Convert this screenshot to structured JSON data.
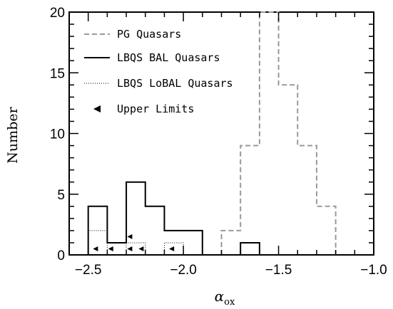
{
  "chart_data": {
    "type": "histogram",
    "xlabel": "α",
    "xlabel_subscript": "ox",
    "ylabel": "Number",
    "xlim": [
      -2.6,
      -1.0
    ],
    "ylim": [
      0,
      20
    ],
    "x_ticks": [
      -2.5,
      -2.0,
      -1.5,
      -1.0
    ],
    "x_tick_labels": [
      "−2.5",
      "−2.0",
      "−1.5",
      "−1.0"
    ],
    "y_ticks": [
      0,
      5,
      10,
      15,
      20
    ],
    "y_tick_labels": [
      "0",
      "5",
      "10",
      "15",
      "20"
    ],
    "series": [
      {
        "name": "PG Quasars",
        "style": "dashed",
        "color": "#999999",
        "bins": [
          {
            "x0": -1.8,
            "x1": -1.7,
            "count": 2
          },
          {
            "x0": -1.7,
            "x1": -1.6,
            "count": 9
          },
          {
            "x0": -1.6,
            "x1": -1.5,
            "count": 20
          },
          {
            "x0": -1.5,
            "x1": -1.4,
            "count": 14
          },
          {
            "x0": -1.4,
            "x1": -1.3,
            "count": 9
          },
          {
            "x0": -1.3,
            "x1": -1.2,
            "count": 4
          }
        ]
      },
      {
        "name": "LBQS BAL Quasars",
        "style": "solid",
        "color": "#000000",
        "bins": [
          {
            "x0": -2.5,
            "x1": -2.4,
            "count": 4
          },
          {
            "x0": -2.4,
            "x1": -2.3,
            "count": 1
          },
          {
            "x0": -2.3,
            "x1": -2.2,
            "count": 6
          },
          {
            "x0": -2.2,
            "x1": -2.1,
            "count": 4
          },
          {
            "x0": -2.1,
            "x1": -1.9,
            "count": 2
          },
          {
            "x0": -1.9,
            "x1": -1.7,
            "count": 0
          },
          {
            "x0": -1.7,
            "x1": -1.6,
            "count": 1
          }
        ]
      },
      {
        "name": "LBQS LoBAL Quasars",
        "style": "dotted",
        "color": "#000000",
        "bins": [
          {
            "x0": -2.5,
            "x1": -2.4,
            "count": 2
          },
          {
            "x0": -2.4,
            "x1": -2.3,
            "count": 0
          },
          {
            "x0": -2.3,
            "x1": -2.2,
            "count": 1
          },
          {
            "x0": -2.2,
            "x1": -2.1,
            "count": 0
          },
          {
            "x0": -2.1,
            "x1": -2.0,
            "count": 1
          }
        ]
      }
    ],
    "upper_limits": {
      "name": "Upper Limits",
      "points": [
        {
          "x": -2.46,
          "y": 0.5
        },
        {
          "x": -2.38,
          "y": 0.5
        },
        {
          "x": -2.28,
          "y": 0.5
        },
        {
          "x": -2.28,
          "y": 1.5
        },
        {
          "x": -2.22,
          "y": 0.5
        },
        {
          "x": -2.06,
          "y": 0.5
        }
      ]
    },
    "legend": [
      "PG Quasars",
      "LBQS BAL Quasars",
      "LBQS LoBAL Quasars",
      "Upper Limits"
    ],
    "legend_position": "top-left",
    "grid": false
  }
}
